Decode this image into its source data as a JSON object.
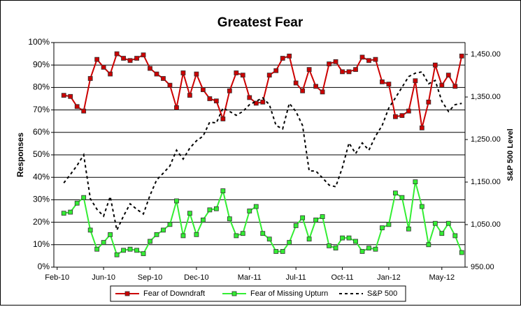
{
  "chart_data": {
    "type": "line",
    "title": "Greatest Fear",
    "y_label": "Responses",
    "y2_label": "S&P 500 Level",
    "categories": [
      "Feb-10",
      null,
      null,
      null,
      null,
      null,
      null,
      "Jun-10",
      null,
      null,
      null,
      null,
      null,
      null,
      "Sep-10",
      null,
      null,
      null,
      null,
      null,
      null,
      "Dec-10",
      null,
      null,
      null,
      null,
      null,
      null,
      null,
      "Mar-11",
      null,
      null,
      null,
      null,
      null,
      null,
      "Jul-11",
      null,
      null,
      null,
      null,
      null,
      null,
      "Oct-11",
      null,
      null,
      null,
      null,
      null,
      null,
      "Jan-12",
      null,
      null,
      null,
      null,
      null,
      null,
      null,
      "May-12",
      null,
      null,
      null
    ],
    "series": [
      {
        "name": "Fear of Downdraft",
        "color": "#cc0000",
        "marker": "square",
        "line_style": "solid",
        "values": [
          null,
          76.5,
          76,
          71.5,
          69.5,
          84,
          92.5,
          89,
          86,
          95,
          93,
          92,
          93,
          94.5,
          88.5,
          86,
          84,
          81,
          71,
          86.5,
          76.5,
          86,
          79,
          75,
          74,
          66,
          78.5,
          86.5,
          85.5,
          75.5,
          73,
          73.5,
          85.5,
          87.5,
          93,
          94,
          82,
          78.5,
          88,
          80.5,
          78,
          90.5,
          91.5,
          87,
          87,
          88,
          93.5,
          92,
          92.5,
          82.5,
          81.5,
          67,
          67.5,
          69.5,
          83,
          62,
          73.5,
          90,
          81,
          85.5,
          80.5,
          94
        ]
      },
      {
        "name": "Fear of Missing Upturn",
        "color": "#33ee33",
        "marker": "square",
        "line_style": "solid",
        "values": [
          null,
          24,
          24.5,
          28.5,
          31,
          16.5,
          8,
          11,
          14.5,
          5.5,
          7.5,
          8,
          7.5,
          6,
          11.5,
          14.5,
          16.5,
          19,
          29.5,
          14,
          24,
          14.5,
          21,
          25.5,
          26,
          34,
          21.5,
          14,
          15,
          25,
          27,
          15,
          12.5,
          7,
          7,
          11,
          18.5,
          22,
          12.5,
          21,
          22.5,
          9.5,
          8.5,
          13,
          13,
          11.5,
          7,
          8.5,
          8,
          17.5,
          19,
          33,
          31,
          17,
          38,
          27,
          10,
          19.5,
          15,
          19.5,
          14,
          6.5
        ]
      },
      {
        "name": "S&P 500",
        "color": "#000000",
        "marker": "none",
        "line_style": "dashed",
        "axis": "y2",
        "values": [
          null,
          1148,
          1168,
          1189,
          1214,
          1111,
          1086,
          1070,
          1116,
          1037,
          1070,
          1099,
          1086,
          1075,
          1119,
          1155,
          1171,
          1188,
          1225,
          1204,
          1230,
          1247,
          1258,
          1291,
          1289,
          1324,
          1316,
          1307,
          1316,
          1332,
          1340,
          1348,
          1332,
          1283,
          1275,
          1335,
          1316,
          1283,
          1176,
          1176,
          1160,
          1143,
          1139,
          1184,
          1242,
          1217,
          1242,
          1225,
          1258,
          1283,
          1324,
          1348,
          1373,
          1398,
          1406,
          1409,
          1381,
          1389,
          1340,
          1316,
          1332,
          1335
        ]
      }
    ],
    "ylim": [
      0,
      100
    ],
    "yticks": [
      {
        "value": 0,
        "label": "0%"
      },
      {
        "value": 10,
        "label": "10%"
      },
      {
        "value": 20,
        "label": "20%"
      },
      {
        "value": 30,
        "label": "30%"
      },
      {
        "value": 40,
        "label": "40%"
      },
      {
        "value": 50,
        "label": "50%"
      },
      {
        "value": 60,
        "label": "60%"
      },
      {
        "value": 70,
        "label": "70%"
      },
      {
        "value": 80,
        "label": "80%"
      },
      {
        "value": 90,
        "label": "90%"
      },
      {
        "value": 100,
        "label": "100%"
      }
    ],
    "y2lim": [
      950,
      1478
    ],
    "y2ticks": [
      {
        "value": 950,
        "label": "950.00"
      },
      {
        "value": 1050,
        "label": "1,050.00"
      },
      {
        "value": 1150,
        "label": "1,150.00"
      },
      {
        "value": 1250,
        "label": "1,250.00"
      },
      {
        "value": 1350,
        "label": "1,350.00"
      },
      {
        "value": 1450,
        "label": "1,450.00"
      }
    ],
    "grid": true,
    "legend": "bottom"
  }
}
